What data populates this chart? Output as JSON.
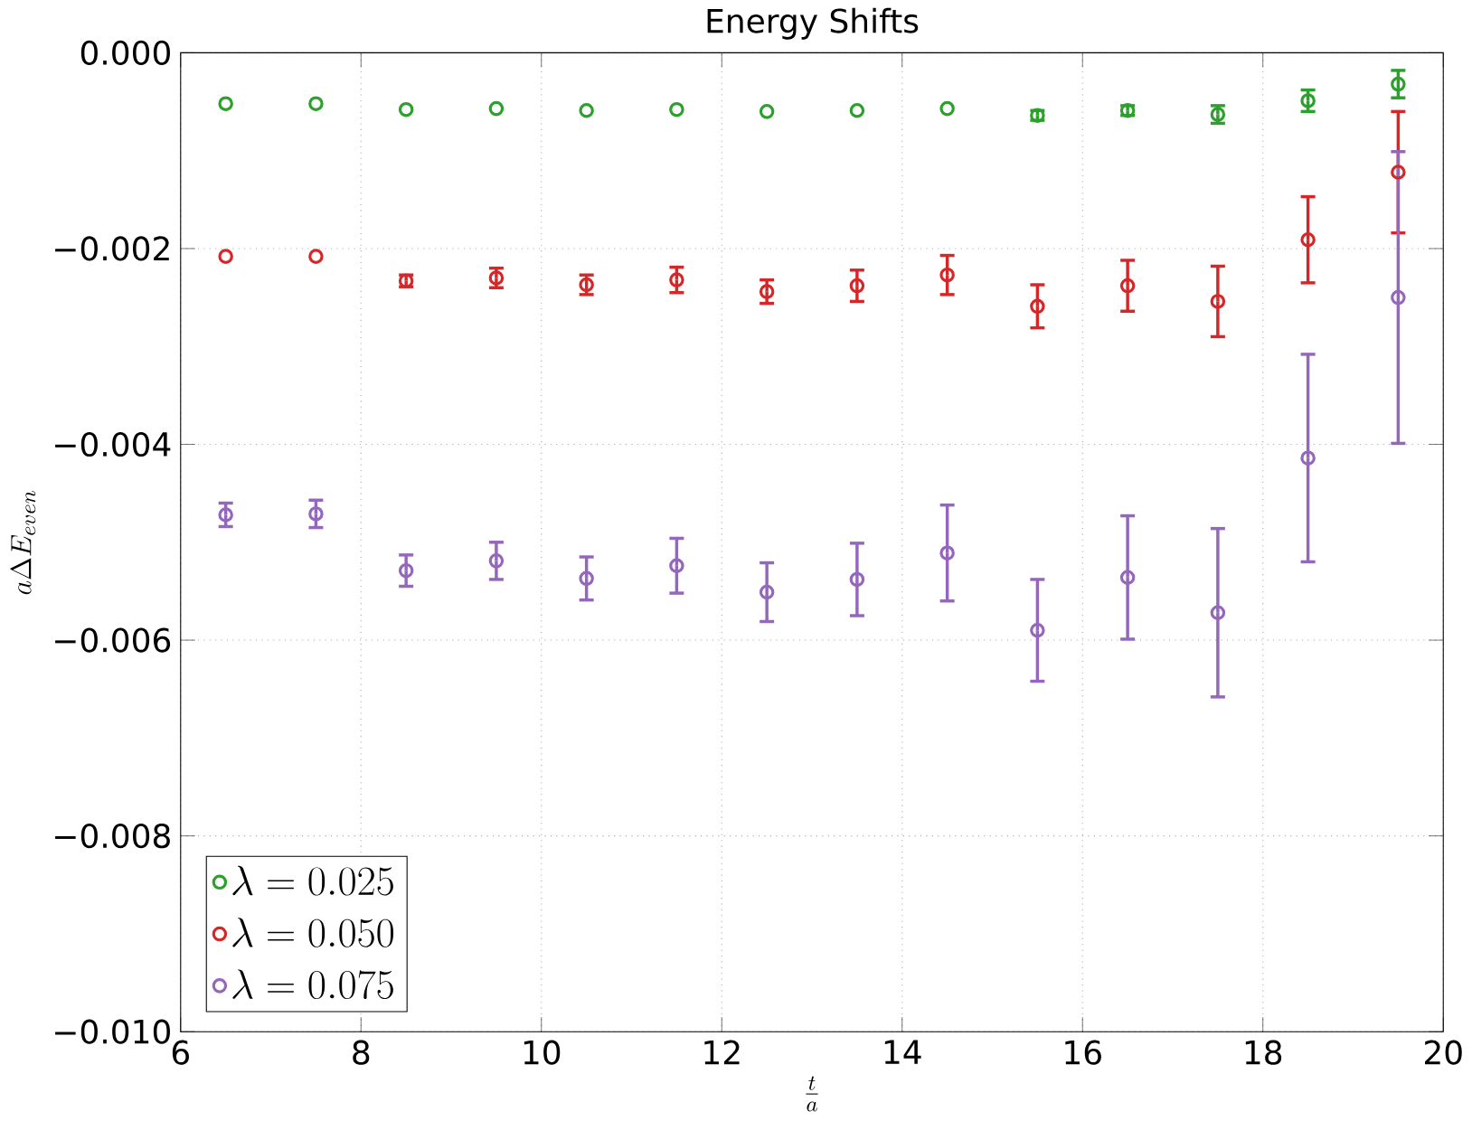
{
  "chart_data": {
    "type": "scatter",
    "title": "Energy Shifts",
    "xlabel": "\\frac{t}{a}",
    "ylabel": "a\\Delta E_{even}",
    "x": [
      6.5,
      7.5,
      8.5,
      9.5,
      10.5,
      11.5,
      12.5,
      13.5,
      14.5,
      15.5,
      16.5,
      17.5,
      18.5,
      19.5
    ],
    "series": [
      {
        "name": "\\lambda = 0.025",
        "color": "#2ca02c",
        "values": [
          -0.00052,
          -0.00052,
          -0.00058,
          -0.00057,
          -0.00059,
          -0.00058,
          -0.0006,
          -0.00059,
          -0.00057,
          -0.00064,
          -0.00059,
          -0.00063,
          -0.00049,
          -0.00032
        ],
        "errors": [
          null,
          null,
          null,
          null,
          null,
          null,
          null,
          null,
          null,
          5e-05,
          5e-05,
          9e-05,
          0.00011,
          0.00014
        ]
      },
      {
        "name": "\\lambda = 0.050",
        "color": "#d62728",
        "values": [
          -0.00208,
          -0.00208,
          -0.00233,
          -0.0023,
          -0.00237,
          -0.00232,
          -0.00244,
          -0.00238,
          -0.00227,
          -0.00259,
          -0.00238,
          -0.00254,
          -0.00191,
          -0.00122
        ],
        "errors": [
          null,
          null,
          6e-05,
          0.0001,
          0.0001,
          0.00013,
          0.00012,
          0.00016,
          0.0002,
          0.00022,
          0.00026,
          0.00036,
          0.00044,
          0.00062
        ]
      },
      {
        "name": "\\lambda = 0.075",
        "color": "#9467bd",
        "values": [
          -0.00472,
          -0.00471,
          -0.00529,
          -0.00519,
          -0.00537,
          -0.00524,
          -0.00551,
          -0.00538,
          -0.00511,
          -0.0059,
          -0.00536,
          -0.00572,
          -0.00414,
          -0.0025
        ],
        "errors": [
          0.00012,
          0.00014,
          0.00016,
          0.00019,
          0.00022,
          0.00028,
          0.0003,
          0.00037,
          0.00049,
          0.00052,
          0.00063,
          0.00086,
          0.00106,
          0.00149
        ]
      }
    ],
    "xlim": [
      6,
      20
    ],
    "ylim": [
      -0.01,
      0.0
    ],
    "xticks": [
      6,
      8,
      10,
      12,
      14,
      16,
      18,
      20
    ],
    "yticks": [
      {
        "value": -0.01,
        "label": "−0.010"
      },
      {
        "value": -0.008,
        "label": "−0.008"
      },
      {
        "value": -0.006,
        "label": "−0.006"
      },
      {
        "value": -0.004,
        "label": "−0.004"
      },
      {
        "value": -0.002,
        "label": "−0.002"
      },
      {
        "value": 0.0,
        "label": "0.000"
      }
    ],
    "grid": true,
    "legend": "bottom left",
    "marker": "circle"
  }
}
